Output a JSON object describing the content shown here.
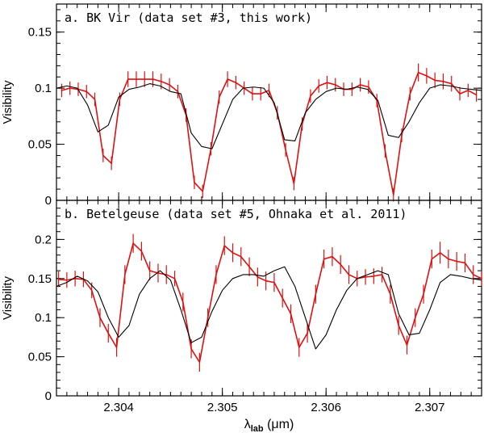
{
  "chart_data": [
    {
      "type": "line",
      "panel_label": "a. BK Vir (data set #3, this work)",
      "ylabel": "Visibility",
      "xlim": [
        2.3034,
        2.3075
      ],
      "ylim": [
        0,
        0.175
      ],
      "yticks": [
        0,
        0.05,
        0.1,
        0.15
      ],
      "ytick_labels": [
        "0",
        "0.05",
        "0.1",
        "0.15"
      ],
      "series": [
        {
          "name": "observed",
          "color": "#dd1111",
          "error_bars": true,
          "x": [
            2.30345,
            2.30353,
            2.30361,
            2.30369,
            2.30377,
            2.30385,
            2.30393,
            2.30401,
            2.30409,
            2.30417,
            2.30425,
            2.30433,
            2.30441,
            2.30449,
            2.30457,
            2.30465,
            2.30473,
            2.30481,
            2.30489,
            2.30497,
            2.30505,
            2.30513,
            2.30521,
            2.30529,
            2.30537,
            2.30545,
            2.30553,
            2.30561,
            2.30569,
            2.30577,
            2.30585,
            2.30593,
            2.30601,
            2.30609,
            2.30617,
            2.30625,
            2.30633,
            2.30641,
            2.30649,
            2.30657,
            2.30665,
            2.30673,
            2.30681,
            2.30689,
            2.30697,
            2.30705,
            2.30713,
            2.30721,
            2.30729,
            2.30737,
            2.30745
          ],
          "y": [
            0.098,
            0.1,
            0.099,
            0.097,
            0.09,
            0.04,
            0.033,
            0.09,
            0.108,
            0.108,
            0.108,
            0.108,
            0.106,
            0.103,
            0.097,
            0.076,
            0.016,
            0.008,
            0.046,
            0.092,
            0.108,
            0.105,
            0.1,
            0.095,
            0.095,
            0.098,
            0.078,
            0.045,
            0.015,
            0.068,
            0.093,
            0.102,
            0.105,
            0.103,
            0.099,
            0.099,
            0.103,
            0.101,
            0.089,
            0.044,
            0.005,
            0.058,
            0.095,
            0.114,
            0.111,
            0.107,
            0.106,
            0.104,
            0.095,
            0.098,
            0.094
          ],
          "err": [
            0.006,
            0.006,
            0.006,
            0.006,
            0.006,
            0.006,
            0.006,
            0.006,
            0.007,
            0.007,
            0.007,
            0.007,
            0.007,
            0.006,
            0.006,
            0.006,
            0.006,
            0.006,
            0.006,
            0.006,
            0.007,
            0.006,
            0.006,
            0.006,
            0.006,
            0.006,
            0.006,
            0.006,
            0.006,
            0.006,
            0.006,
            0.006,
            0.006,
            0.006,
            0.006,
            0.006,
            0.006,
            0.006,
            0.006,
            0.006,
            0.006,
            0.006,
            0.006,
            0.008,
            0.007,
            0.007,
            0.007,
            0.007,
            0.006,
            0.006,
            0.006
          ]
        },
        {
          "name": "model",
          "color": "#000000",
          "error_bars": false,
          "x": [
            2.3034,
            2.3035,
            2.3036,
            2.3037,
            2.3038,
            2.3039,
            2.304,
            2.3041,
            2.3042,
            2.3043,
            2.3044,
            2.3045,
            2.3046,
            2.3047,
            2.3048,
            2.3049,
            2.305,
            2.3051,
            2.3052,
            2.3053,
            2.3054,
            2.3055,
            2.3056,
            2.3057,
            2.3058,
            2.3059,
            2.306,
            2.3061,
            2.3062,
            2.3063,
            2.3064,
            2.3065,
            2.3066,
            2.3067,
            2.3068,
            2.3069,
            2.307,
            2.3071,
            2.3072,
            2.3073,
            2.3074,
            2.3075
          ],
          "y": [
            0.1,
            0.102,
            0.1,
            0.085,
            0.061,
            0.067,
            0.092,
            0.099,
            0.101,
            0.104,
            0.102,
            0.097,
            0.095,
            0.06,
            0.048,
            0.046,
            0.068,
            0.09,
            0.1,
            0.101,
            0.1,
            0.087,
            0.054,
            0.053,
            0.078,
            0.09,
            0.097,
            0.1,
            0.099,
            0.101,
            0.099,
            0.089,
            0.058,
            0.056,
            0.07,
            0.087,
            0.1,
            0.103,
            0.102,
            0.1,
            0.099,
            0.098
          ]
        }
      ]
    },
    {
      "type": "line",
      "panel_label": "b. Betelgeuse (data set #5, Ohnaka et al. 2011)",
      "ylabel": "Visibility",
      "xlabel": "λlab (μm)",
      "xlabel_main": "λ",
      "xlabel_sub": "lab",
      "xlabel_unit": " (μm)",
      "xlim": [
        2.3034,
        2.3075
      ],
      "ylim": [
        0,
        0.25
      ],
      "yticks": [
        0,
        0.05,
        0.1,
        0.15,
        0.2
      ],
      "ytick_labels": [
        "0",
        "0.05",
        "0.1",
        "0.15",
        "0.2"
      ],
      "xticks": [
        2.304,
        2.305,
        2.306,
        2.307
      ],
      "xtick_labels": [
        "2.304",
        "2.305",
        "2.306",
        "2.307"
      ],
      "series": [
        {
          "name": "observed",
          "color": "#dd1111",
          "error_bars": true,
          "x": [
            2.30342,
            2.3035,
            2.30358,
            2.30366,
            2.30374,
            2.30382,
            2.3039,
            2.30398,
            2.30406,
            2.30414,
            2.30422,
            2.3043,
            2.30438,
            2.30446,
            2.30454,
            2.30462,
            2.3047,
            2.30478,
            2.30486,
            2.30494,
            2.30502,
            2.3051,
            2.30518,
            2.30526,
            2.30534,
            2.30542,
            2.3055,
            2.30558,
            2.30566,
            2.30574,
            2.30582,
            2.3059,
            2.30598,
            2.30606,
            2.30614,
            2.30622,
            2.3063,
            2.30638,
            2.30646,
            2.30654,
            2.30662,
            2.3067,
            2.30678,
            2.30686,
            2.30694,
            2.30702,
            2.3071,
            2.30718,
            2.30726,
            2.30734,
            2.30742,
            2.3075
          ],
          "y": [
            0.149,
            0.148,
            0.15,
            0.149,
            0.135,
            0.1,
            0.08,
            0.062,
            0.155,
            0.195,
            0.185,
            0.16,
            0.157,
            0.155,
            0.15,
            0.12,
            0.06,
            0.043,
            0.1,
            0.155,
            0.192,
            0.183,
            0.178,
            0.165,
            0.152,
            0.147,
            0.145,
            0.125,
            0.105,
            0.062,
            0.08,
            0.13,
            0.175,
            0.178,
            0.168,
            0.155,
            0.15,
            0.152,
            0.153,
            0.155,
            0.13,
            0.09,
            0.065,
            0.1,
            0.13,
            0.175,
            0.183,
            0.175,
            0.172,
            0.17,
            0.155,
            0.15
          ],
          "err": [
            0.01,
            0.01,
            0.01,
            0.01,
            0.01,
            0.012,
            0.012,
            0.012,
            0.012,
            0.012,
            0.012,
            0.012,
            0.012,
            0.012,
            0.01,
            0.012,
            0.012,
            0.012,
            0.012,
            0.012,
            0.012,
            0.012,
            0.012,
            0.012,
            0.012,
            0.012,
            0.012,
            0.012,
            0.012,
            0.012,
            0.012,
            0.012,
            0.012,
            0.012,
            0.012,
            0.012,
            0.01,
            0.01,
            0.01,
            0.01,
            0.012,
            0.012,
            0.012,
            0.012,
            0.012,
            0.012,
            0.014,
            0.012,
            0.012,
            0.012,
            0.012,
            0.01
          ]
        },
        {
          "name": "model",
          "color": "#000000",
          "error_bars": false,
          "x": [
            2.3034,
            2.3035,
            2.3036,
            2.3037,
            2.3038,
            2.3039,
            2.304,
            2.3041,
            2.3042,
            2.3043,
            2.3044,
            2.3045,
            2.3046,
            2.3047,
            2.3048,
            2.3049,
            2.305,
            2.3051,
            2.3052,
            2.3053,
            2.3054,
            2.3055,
            2.3056,
            2.3057,
            2.3058,
            2.3059,
            2.306,
            2.3061,
            2.3062,
            2.3063,
            2.3064,
            2.3065,
            2.3066,
            2.3067,
            2.3068,
            2.3069,
            2.307,
            2.3071,
            2.3072,
            2.3073,
            2.3074,
            2.3075
          ],
          "y": [
            0.14,
            0.145,
            0.153,
            0.147,
            0.133,
            0.1,
            0.075,
            0.09,
            0.13,
            0.15,
            0.16,
            0.148,
            0.11,
            0.068,
            0.075,
            0.108,
            0.135,
            0.15,
            0.155,
            0.155,
            0.153,
            0.16,
            0.165,
            0.14,
            0.1,
            0.06,
            0.078,
            0.11,
            0.135,
            0.15,
            0.155,
            0.16,
            0.155,
            0.105,
            0.078,
            0.08,
            0.11,
            0.145,
            0.155,
            0.153,
            0.15,
            0.148
          ]
        }
      ]
    }
  ]
}
